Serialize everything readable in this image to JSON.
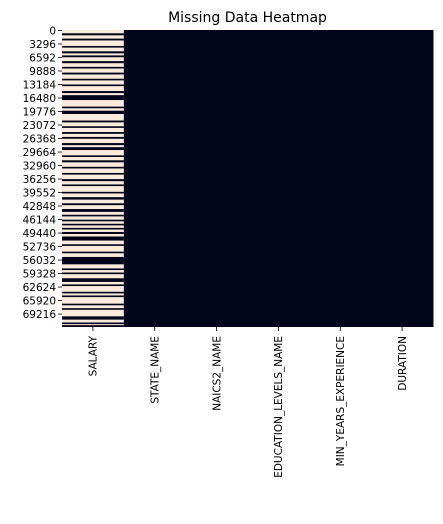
{
  "chart_data": {
    "type": "heatmap",
    "title": "Missing Data Heatmap",
    "xlabel": "",
    "ylabel": "",
    "columns": [
      "SALARY",
      "STATE_NAME",
      "NAICS2_NAME",
      "EDUCATION_LEVELS_NAME",
      "MIN_YEARS_EXPERIENCE",
      "DURATION"
    ],
    "row_tick_labels": [
      "0",
      "3296",
      "6592",
      "9888",
      "13184",
      "16480",
      "19776",
      "23072",
      "26368",
      "29664",
      "32960",
      "36256",
      "39552",
      "42848",
      "46144",
      "49440",
      "52736",
      "56032",
      "59328",
      "62624",
      "65920",
      "69216"
    ],
    "row_tick_values": [
      0,
      3296,
      6592,
      9888,
      13184,
      16480,
      19776,
      23072,
      26368,
      29664,
      32960,
      36256,
      39552,
      42848,
      46144,
      49440,
      52736,
      56032,
      59328,
      62624,
      65920,
      69216
    ],
    "row_count": 72498,
    "colors": {
      "present": "#03051a",
      "missing": "#faebdd"
    },
    "fully_present_columns": [
      "STATE_NAME",
      "NAICS2_NAME",
      "EDUCATION_LEVELS_NAME",
      "MIN_YEARS_EXPERIENCE",
      "DURATION"
    ],
    "salary_present_row_ranges": [
      [
        800,
        1300
      ],
      [
        2100,
        2550
      ],
      [
        3900,
        4300
      ],
      [
        5200,
        5700
      ],
      [
        6200,
        6650
      ],
      [
        7600,
        8100
      ],
      [
        9000,
        9400
      ],
      [
        10400,
        10850
      ],
      [
        11900,
        12300
      ],
      [
        13300,
        13700
      ],
      [
        14900,
        15400
      ],
      [
        15900,
        17100
      ],
      [
        18700,
        19100
      ],
      [
        19700,
        20500
      ],
      [
        22100,
        22550
      ],
      [
        23500,
        23900
      ],
      [
        24900,
        25350
      ],
      [
        26100,
        26550
      ],
      [
        27600,
        28100
      ],
      [
        28600,
        29300
      ],
      [
        30600,
        31000
      ],
      [
        31800,
        32300
      ],
      [
        33400,
        33800
      ],
      [
        34900,
        35300
      ],
      [
        36400,
        36900
      ],
      [
        37700,
        38100
      ],
      [
        39500,
        39900
      ],
      [
        40800,
        41400
      ],
      [
        42300,
        42750
      ],
      [
        43700,
        44400
      ],
      [
        45100,
        45500
      ],
      [
        46300,
        46700
      ],
      [
        47300,
        47700
      ],
      [
        48300,
        48700
      ],
      [
        49300,
        49800
      ],
      [
        50400,
        51400
      ],
      [
        52300,
        52700
      ],
      [
        54100,
        54500
      ],
      [
        55400,
        57200
      ],
      [
        58200,
        58600
      ],
      [
        59200,
        59600
      ],
      [
        60600,
        61500
      ],
      [
        62100,
        62500
      ],
      [
        63900,
        64300
      ],
      [
        64800,
        65200
      ],
      [
        66800,
        67200
      ],
      [
        67900,
        68300
      ],
      [
        69900,
        70700
      ],
      [
        71400,
        71800
      ],
      [
        72050,
        72498
      ]
    ]
  }
}
